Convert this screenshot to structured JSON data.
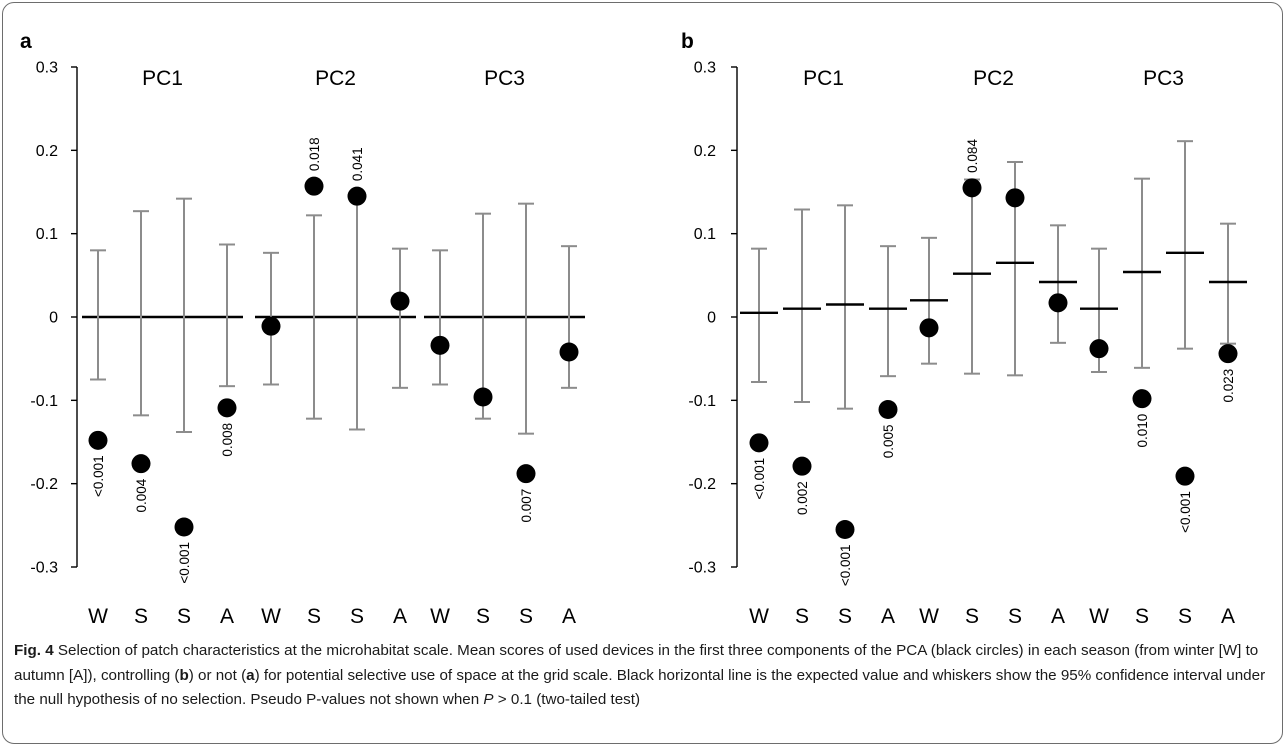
{
  "chart_data": [
    {
      "panel": "a",
      "type": "scatter",
      "ylim": [
        -0.3,
        0.3
      ],
      "y_ticks": [
        "0.3",
        "0.2",
        "0.1",
        "0",
        "-0.1",
        "-0.2",
        "-0.3"
      ],
      "groups": [
        {
          "title": "PC1",
          "points": [
            {
              "season": "W",
              "score": -0.148,
              "expected": 0,
              "ci_low": -0.075,
              "ci_high": 0.08,
              "p": "<0.001"
            },
            {
              "season": "S",
              "score": -0.176,
              "expected": 0,
              "ci_low": -0.118,
              "ci_high": 0.127,
              "p": "0.004"
            },
            {
              "season": "S",
              "score": -0.252,
              "expected": 0,
              "ci_low": -0.138,
              "ci_high": 0.142,
              "p": "<0.001"
            },
            {
              "season": "A",
              "score": -0.109,
              "expected": 0,
              "ci_low": -0.083,
              "ci_high": 0.087,
              "p": "0.008"
            }
          ]
        },
        {
          "title": "PC2",
          "points": [
            {
              "season": "W",
              "score": -0.011,
              "expected": 0,
              "ci_low": -0.081,
              "ci_high": 0.077,
              "p": ""
            },
            {
              "season": "S",
              "score": 0.157,
              "expected": 0,
              "ci_low": -0.122,
              "ci_high": 0.122,
              "p": "0.018"
            },
            {
              "season": "S",
              "score": 0.145,
              "expected": 0,
              "ci_low": -0.135,
              "ci_high": 0.142,
              "p": "0.041"
            },
            {
              "season": "A",
              "score": 0.019,
              "expected": 0,
              "ci_low": -0.085,
              "ci_high": 0.082,
              "p": ""
            }
          ]
        },
        {
          "title": "PC3",
          "points": [
            {
              "season": "W",
              "score": -0.034,
              "expected": 0,
              "ci_low": -0.081,
              "ci_high": 0.08,
              "p": ""
            },
            {
              "season": "S",
              "score": -0.096,
              "expected": 0,
              "ci_low": -0.122,
              "ci_high": 0.124,
              "p": ""
            },
            {
              "season": "S",
              "score": -0.188,
              "expected": 0,
              "ci_low": -0.14,
              "ci_high": 0.136,
              "p": "0.007"
            },
            {
              "season": "A",
              "score": -0.042,
              "expected": 0,
              "ci_low": -0.085,
              "ci_high": 0.085,
              "p": ""
            }
          ]
        }
      ]
    },
    {
      "panel": "b",
      "type": "scatter",
      "ylim": [
        -0.3,
        0.3
      ],
      "y_ticks": [
        "0.3",
        "0.2",
        "0.1",
        "0",
        "-0.1",
        "-0.2",
        "-0.3"
      ],
      "groups": [
        {
          "title": "PC1",
          "points": [
            {
              "season": "W",
              "score": -0.151,
              "expected": 0.005,
              "ci_low": -0.078,
              "ci_high": 0.082,
              "p": "<0.001"
            },
            {
              "season": "S",
              "score": -0.179,
              "expected": 0.01,
              "ci_low": -0.102,
              "ci_high": 0.129,
              "p": "0.002"
            },
            {
              "season": "S",
              "score": -0.255,
              "expected": 0.015,
              "ci_low": -0.11,
              "ci_high": 0.134,
              "p": "<0.001"
            },
            {
              "season": "A",
              "score": -0.111,
              "expected": 0.01,
              "ci_low": -0.071,
              "ci_high": 0.085,
              "p": "0.005"
            }
          ]
        },
        {
          "title": "PC2",
          "points": [
            {
              "season": "W",
              "score": -0.013,
              "expected": 0.02,
              "ci_low": -0.056,
              "ci_high": 0.095,
              "p": ""
            },
            {
              "season": "S",
              "score": 0.155,
              "expected": 0.052,
              "ci_low": -0.068,
              "ci_high": 0.165,
              "p": "0.084"
            },
            {
              "season": "S",
              "score": 0.143,
              "expected": 0.065,
              "ci_low": -0.07,
              "ci_high": 0.186,
              "p": ""
            },
            {
              "season": "A",
              "score": 0.017,
              "expected": 0.042,
              "ci_low": -0.031,
              "ci_high": 0.11,
              "p": ""
            }
          ]
        },
        {
          "title": "PC3",
          "points": [
            {
              "season": "W",
              "score": -0.038,
              "expected": 0.01,
              "ci_low": -0.066,
              "ci_high": 0.082,
              "p": ""
            },
            {
              "season": "S",
              "score": -0.098,
              "expected": 0.054,
              "ci_low": -0.061,
              "ci_high": 0.166,
              "p": "0.010"
            },
            {
              "season": "S",
              "score": -0.191,
              "expected": 0.077,
              "ci_low": -0.038,
              "ci_high": 0.211,
              "p": "<0.001"
            },
            {
              "season": "A",
              "score": -0.044,
              "expected": 0.042,
              "ci_low": -0.032,
              "ci_high": 0.112,
              "p": "0.023"
            }
          ]
        }
      ]
    }
  ],
  "colors": {
    "point": "#000000",
    "expected_line": "#000000",
    "whisker": "#8c8c8c",
    "frame": "#6d6d6d"
  },
  "caption": {
    "fig_label": "Fig. 4",
    "parts": [
      {
        "t": "  Selection of patch characteristics at the microhabitat scale. Mean scores of used devices in the first three components of the PCA (black circles) in each season (from winter [W] to autumn [A]), controlling ("
      },
      {
        "t": "b",
        "b": true
      },
      {
        "t": ") or not ("
      },
      {
        "t": "a",
        "b": true
      },
      {
        "t": ") for potential selective use of space at the grid scale. Black horizontal line is the expected value and whiskers show the 95% confidence interval under the null hypothesis of no selection. Pseudo P-values not shown when "
      },
      {
        "t": "P",
        "i": true
      },
      {
        "t": " > 0.1 (two-tailed test)"
      }
    ]
  }
}
